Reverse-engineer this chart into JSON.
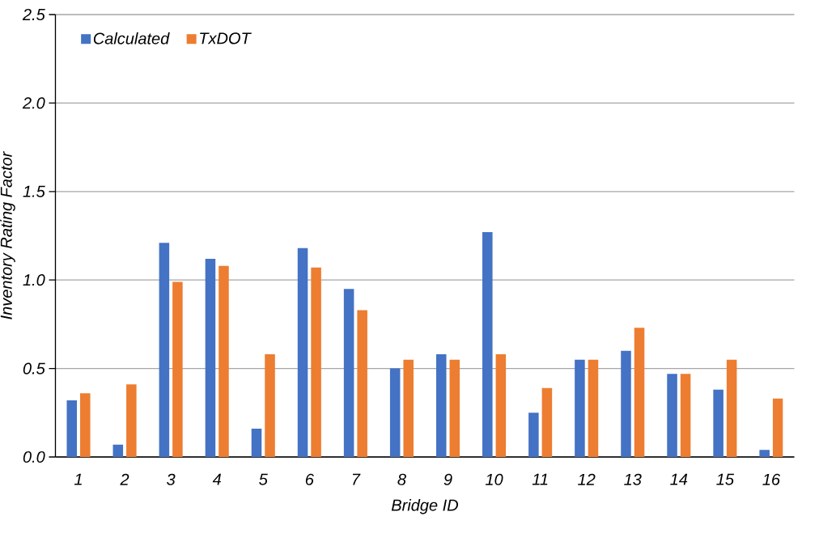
{
  "chart_data": {
    "type": "bar",
    "xlabel": "Bridge ID",
    "ylabel": "Inventory Rating Factor",
    "categories": [
      "1",
      "2",
      "3",
      "4",
      "5",
      "6",
      "7",
      "8",
      "9",
      "10",
      "11",
      "12",
      "13",
      "14",
      "15",
      "16"
    ],
    "series": [
      {
        "name": "Calculated",
        "color": "#4472c4",
        "values": [
          0.32,
          0.07,
          1.21,
          1.12,
          0.16,
          1.18,
          0.95,
          0.5,
          0.58,
          1.27,
          0.25,
          0.55,
          0.6,
          0.47,
          0.38,
          0.04
        ]
      },
      {
        "name": "TxDOT",
        "color": "#ed7d31",
        "values": [
          0.36,
          0.41,
          0.99,
          1.08,
          0.58,
          1.07,
          0.83,
          0.55,
          0.55,
          0.58,
          0.39,
          0.55,
          0.73,
          0.47,
          0.55,
          0.33
        ]
      }
    ],
    "ylim": [
      0,
      2.5
    ],
    "yticks": [
      {
        "value": 0,
        "label": "0.0"
      },
      {
        "value": 0.5,
        "label": "0.5"
      },
      {
        "value": 1,
        "label": "1.0"
      },
      {
        "value": 1.5,
        "label": "1.5"
      },
      {
        "value": 2,
        "label": "2.0"
      },
      {
        "value": 2.5,
        "label": "2.5"
      }
    ],
    "grid": "y",
    "legend": "top left"
  }
}
